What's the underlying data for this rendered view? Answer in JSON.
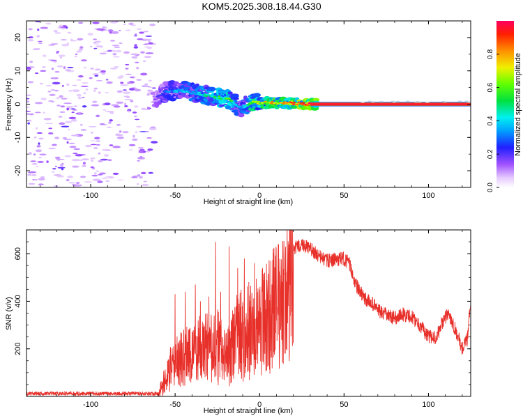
{
  "title": "KOM5.2025.308.18.44.G30",
  "chart_data": [
    {
      "type": "heatmap",
      "name": "spectrogram",
      "xlabel": "Height of straight line (km)",
      "ylabel": "Frequency (Hz)",
      "xlim": [
        -138,
        125
      ],
      "ylim": [
        -25,
        25
      ],
      "xticks": [
        -100,
        -50,
        0,
        50,
        100
      ],
      "yticks": [
        -20,
        -10,
        0,
        10,
        20
      ],
      "colorbar": {
        "label": "Normalized spectral amplitude",
        "range": [
          0,
          1
        ],
        "ticks": [
          0.0,
          0.2,
          0.4,
          0.6,
          0.8
        ],
        "tick_labels": [
          "0.0",
          "0.2",
          "0.4",
          "0.6",
          "0.8"
        ]
      },
      "features": {
        "noise_region_x": [
          -138,
          -62
        ],
        "signal_start_x": -62,
        "track": [
          {
            "x": -62,
            "f": 1.5,
            "amp": 0.15
          },
          {
            "x": -55,
            "f": 4.0,
            "amp": 0.3
          },
          {
            "x": -45,
            "f": 4.0,
            "amp": 0.35
          },
          {
            "x": -35,
            "f": 3.0,
            "amp": 0.4
          },
          {
            "x": -25,
            "f": 2.0,
            "amp": 0.5
          },
          {
            "x": -18,
            "f": 1.5,
            "amp": 0.55
          },
          {
            "x": -12,
            "f": -1.0,
            "amp": 0.35
          },
          {
            "x": -8,
            "f": -0.5,
            "amp": 0.4
          },
          {
            "x": -4,
            "f": 0.5,
            "amp": 0.6
          },
          {
            "x": 10,
            "f": 0.3,
            "amp": 0.75
          },
          {
            "x": 25,
            "f": 0.1,
            "amp": 0.85
          },
          {
            "x": 35,
            "f": 0.0,
            "amp": 0.95
          },
          {
            "x": 125,
            "f": 0.0,
            "amp": 0.95
          }
        ]
      }
    },
    {
      "type": "line",
      "name": "snr",
      "xlabel": "Height of straight line (km)",
      "ylabel": "SNR (v/v)",
      "xlim": [
        -138,
        125
      ],
      "ylim": [
        0,
        700
      ],
      "xticks": [
        -100,
        -50,
        0,
        50,
        100
      ],
      "yticks": [
        200,
        400,
        600
      ],
      "color": "#e8302a",
      "envelope": [
        {
          "x": -138,
          "y": 12
        },
        {
          "x": -60,
          "y": 12
        },
        {
          "x": -57,
          "y": 60
        },
        {
          "x": -52,
          "y": 150
        },
        {
          "x": -45,
          "y": 200
        },
        {
          "x": -35,
          "y": 230
        },
        {
          "x": -25,
          "y": 250
        },
        {
          "x": -20,
          "y": 200
        },
        {
          "x": -15,
          "y": 280
        },
        {
          "x": -8,
          "y": 330
        },
        {
          "x": 0,
          "y": 370
        },
        {
          "x": 5,
          "y": 400
        },
        {
          "x": 10,
          "y": 450
        },
        {
          "x": 15,
          "y": 530
        },
        {
          "x": 20,
          "y": 620
        },
        {
          "x": 25,
          "y": 640
        },
        {
          "x": 30,
          "y": 620
        },
        {
          "x": 35,
          "y": 590
        },
        {
          "x": 40,
          "y": 570
        },
        {
          "x": 45,
          "y": 575
        },
        {
          "x": 50,
          "y": 580
        },
        {
          "x": 53,
          "y": 560
        },
        {
          "x": 57,
          "y": 470
        },
        {
          "x": 62,
          "y": 410
        },
        {
          "x": 67,
          "y": 390
        },
        {
          "x": 72,
          "y": 350
        },
        {
          "x": 80,
          "y": 330
        },
        {
          "x": 85,
          "y": 345
        },
        {
          "x": 90,
          "y": 335
        },
        {
          "x": 95,
          "y": 300
        },
        {
          "x": 100,
          "y": 250
        },
        {
          "x": 105,
          "y": 250
        },
        {
          "x": 108,
          "y": 310
        },
        {
          "x": 112,
          "y": 350
        },
        {
          "x": 116,
          "y": 280
        },
        {
          "x": 120,
          "y": 200
        },
        {
          "x": 123,
          "y": 240
        },
        {
          "x": 125,
          "y": 400
        }
      ],
      "spikes": [
        {
          "x": -50,
          "y": 430
        },
        {
          "x": -44,
          "y": 440
        },
        {
          "x": -38,
          "y": 470
        },
        {
          "x": -35,
          "y": 400
        },
        {
          "x": -30,
          "y": 420
        },
        {
          "x": -26,
          "y": 650
        },
        {
          "x": -23,
          "y": 440
        },
        {
          "x": -18,
          "y": 630
        },
        {
          "x": -13,
          "y": 540
        },
        {
          "x": -9,
          "y": 580
        },
        {
          "x": -3,
          "y": 560
        },
        {
          "x": 3,
          "y": 520
        },
        {
          "x": 8,
          "y": 620
        },
        {
          "x": 18,
          "y": 690
        }
      ]
    }
  ]
}
